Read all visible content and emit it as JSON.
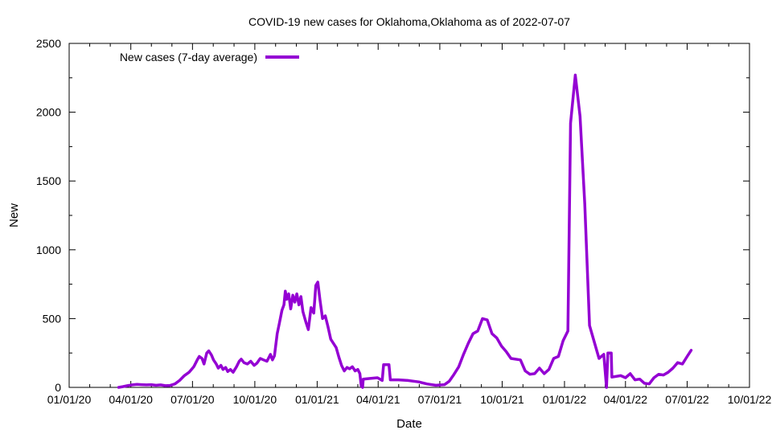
{
  "chart_data": {
    "type": "line",
    "title": "COVID-19 new cases for Oklahoma,Oklahoma as of 2022-07-07",
    "xlabel": "Date",
    "ylabel": "New",
    "xlim": [
      "2020-01-01",
      "2022-10-01"
    ],
    "ylim": [
      0,
      2500
    ],
    "x_ticks": [
      "01/01/20",
      "04/01/20",
      "07/01/20",
      "10/01/20",
      "01/01/21",
      "04/01/21",
      "07/01/21",
      "10/01/21",
      "01/01/22",
      "04/01/22",
      "07/01/22",
      "10/01/22"
    ],
    "y_ticks": [
      0,
      500,
      1000,
      1500,
      2000,
      2500
    ],
    "legend_position": "top-left",
    "grid": false,
    "series": [
      {
        "name": "New cases (7-day average)",
        "color": "#9400d3",
        "points": [
          [
            "2020-03-14",
            0
          ],
          [
            "2020-03-20",
            5
          ],
          [
            "2020-03-27",
            12
          ],
          [
            "2020-04-03",
            18
          ],
          [
            "2020-04-10",
            22
          ],
          [
            "2020-04-17",
            20
          ],
          [
            "2020-04-24",
            18
          ],
          [
            "2020-05-01",
            20
          ],
          [
            "2020-05-08",
            15
          ],
          [
            "2020-05-15",
            18
          ],
          [
            "2020-05-22",
            12
          ],
          [
            "2020-05-29",
            14
          ],
          [
            "2020-06-05",
            25
          ],
          [
            "2020-06-12",
            50
          ],
          [
            "2020-06-19",
            85
          ],
          [
            "2020-06-26",
            110
          ],
          [
            "2020-07-03",
            150
          ],
          [
            "2020-07-08",
            200
          ],
          [
            "2020-07-11",
            225
          ],
          [
            "2020-07-15",
            210
          ],
          [
            "2020-07-18",
            170
          ],
          [
            "2020-07-22",
            250
          ],
          [
            "2020-07-25",
            265
          ],
          [
            "2020-07-29",
            235
          ],
          [
            "2020-08-01",
            200
          ],
          [
            "2020-08-05",
            170
          ],
          [
            "2020-08-08",
            140
          ],
          [
            "2020-08-12",
            160
          ],
          [
            "2020-08-15",
            130
          ],
          [
            "2020-08-19",
            145
          ],
          [
            "2020-08-22",
            115
          ],
          [
            "2020-08-26",
            130
          ],
          [
            "2020-08-30",
            110
          ],
          [
            "2020-09-04",
            150
          ],
          [
            "2020-09-08",
            190
          ],
          [
            "2020-09-11",
            205
          ],
          [
            "2020-09-15",
            180
          ],
          [
            "2020-09-20",
            170
          ],
          [
            "2020-09-25",
            190
          ],
          [
            "2020-09-30",
            160
          ],
          [
            "2020-10-04",
            175
          ],
          [
            "2020-10-09",
            210
          ],
          [
            "2020-10-14",
            200
          ],
          [
            "2020-10-19",
            190
          ],
          [
            "2020-10-24",
            240
          ],
          [
            "2020-10-27",
            200
          ],
          [
            "2020-10-30",
            230
          ],
          [
            "2020-11-03",
            390
          ],
          [
            "2020-11-06",
            460
          ],
          [
            "2020-11-10",
            560
          ],
          [
            "2020-11-13",
            600
          ],
          [
            "2020-11-15",
            700
          ],
          [
            "2020-11-17",
            640
          ],
          [
            "2020-11-20",
            680
          ],
          [
            "2020-11-23",
            570
          ],
          [
            "2020-11-26",
            670
          ],
          [
            "2020-11-29",
            620
          ],
          [
            "2020-12-02",
            680
          ],
          [
            "2020-12-05",
            600
          ],
          [
            "2020-12-08",
            660
          ],
          [
            "2020-12-11",
            550
          ],
          [
            "2020-12-15",
            480
          ],
          [
            "2020-12-19",
            420
          ],
          [
            "2020-12-23",
            580
          ],
          [
            "2020-12-27",
            540
          ],
          [
            "2020-12-30",
            740
          ],
          [
            "2021-01-02",
            765
          ],
          [
            "2021-01-05",
            640
          ],
          [
            "2021-01-09",
            500
          ],
          [
            "2021-01-13",
            520
          ],
          [
            "2021-01-17",
            440
          ],
          [
            "2021-01-21",
            350
          ],
          [
            "2021-01-25",
            320
          ],
          [
            "2021-01-29",
            290
          ],
          [
            "2021-02-02",
            220
          ],
          [
            "2021-02-06",
            160
          ],
          [
            "2021-02-10",
            120
          ],
          [
            "2021-02-14",
            145
          ],
          [
            "2021-02-18",
            135
          ],
          [
            "2021-02-22",
            150
          ],
          [
            "2021-02-26",
            120
          ],
          [
            "2021-03-02",
            130
          ],
          [
            "2021-03-05",
            100
          ],
          [
            "2021-03-07",
            10
          ],
          [
            "2021-03-09",
            0
          ],
          [
            "2021-03-10",
            60
          ],
          [
            "2021-03-20",
            65
          ],
          [
            "2021-03-31",
            70
          ],
          [
            "2021-04-07",
            50
          ],
          [
            "2021-04-09",
            165
          ],
          [
            "2021-04-17",
            165
          ],
          [
            "2021-04-19",
            55
          ],
          [
            "2021-05-01",
            55
          ],
          [
            "2021-05-15",
            50
          ],
          [
            "2021-05-31",
            40
          ],
          [
            "2021-06-12",
            25
          ],
          [
            "2021-06-25",
            15
          ],
          [
            "2021-07-08",
            20
          ],
          [
            "2021-07-15",
            45
          ],
          [
            "2021-07-22",
            95
          ],
          [
            "2021-07-29",
            150
          ],
          [
            "2021-08-05",
            240
          ],
          [
            "2021-08-12",
            320
          ],
          [
            "2021-08-19",
            390
          ],
          [
            "2021-08-26",
            410
          ],
          [
            "2021-09-02",
            500
          ],
          [
            "2021-09-09",
            490
          ],
          [
            "2021-09-16",
            390
          ],
          [
            "2021-09-23",
            360
          ],
          [
            "2021-09-30",
            300
          ],
          [
            "2021-10-07",
            260
          ],
          [
            "2021-10-14",
            210
          ],
          [
            "2021-10-28",
            200
          ],
          [
            "2021-11-04",
            120
          ],
          [
            "2021-11-11",
            95
          ],
          [
            "2021-11-18",
            100
          ],
          [
            "2021-11-25",
            140
          ],
          [
            "2021-12-02",
            100
          ],
          [
            "2021-12-09",
            130
          ],
          [
            "2021-12-16",
            210
          ],
          [
            "2021-12-23",
            225
          ],
          [
            "2021-12-30",
            340
          ],
          [
            "2022-01-06",
            410
          ],
          [
            "2022-01-10",
            1920
          ],
          [
            "2022-01-17",
            2270
          ],
          [
            "2022-01-24",
            1970
          ],
          [
            "2022-01-31",
            1330
          ],
          [
            "2022-02-07",
            450
          ],
          [
            "2022-02-14",
            330
          ],
          [
            "2022-02-21",
            210
          ],
          [
            "2022-02-28",
            240
          ],
          [
            "2022-03-04",
            0
          ],
          [
            "2022-03-06",
            250
          ],
          [
            "2022-03-11",
            250
          ],
          [
            "2022-03-12",
            75
          ],
          [
            "2022-03-25",
            85
          ],
          [
            "2022-04-01",
            70
          ],
          [
            "2022-04-08",
            100
          ],
          [
            "2022-04-15",
            55
          ],
          [
            "2022-04-22",
            60
          ],
          [
            "2022-04-29",
            30
          ],
          [
            "2022-05-06",
            25
          ],
          [
            "2022-05-13",
            70
          ],
          [
            "2022-05-20",
            95
          ],
          [
            "2022-05-27",
            90
          ],
          [
            "2022-06-03",
            110
          ],
          [
            "2022-06-10",
            140
          ],
          [
            "2022-06-17",
            180
          ],
          [
            "2022-06-24",
            170
          ],
          [
            "2022-07-01",
            225
          ],
          [
            "2022-07-07",
            270
          ]
        ]
      }
    ]
  }
}
